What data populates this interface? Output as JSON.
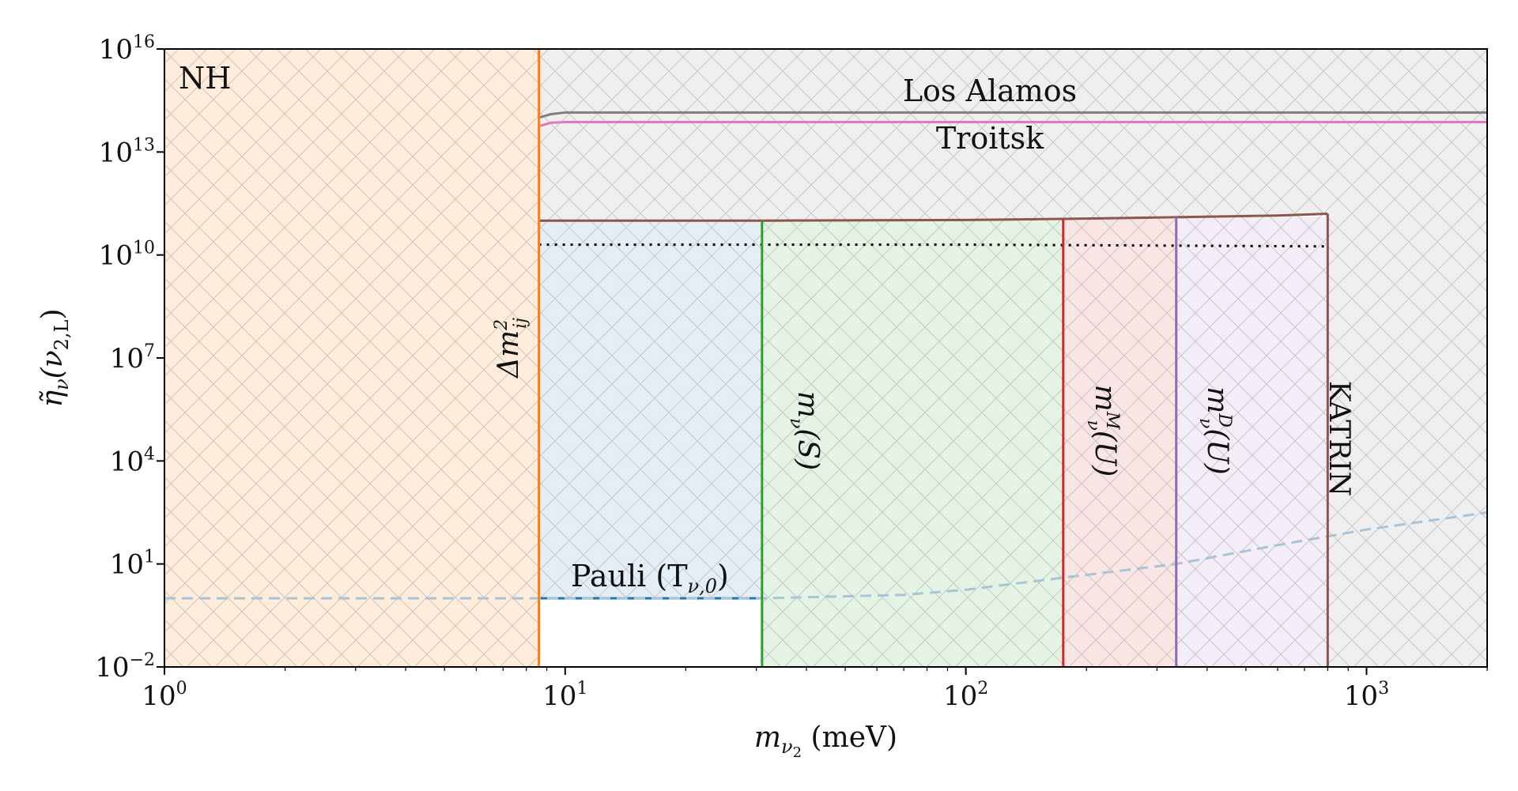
{
  "chart_data": {
    "type": "line",
    "title": "",
    "xlabel": "m_{ν2} (meV)",
    "ylabel": "η̃_ν(ν_{2,L})",
    "x_scale": "log",
    "y_scale": "log",
    "xlim": [
      1,
      2000
    ],
    "ylim_exp": [
      -2,
      16
    ],
    "x_ticks": [
      {
        "value": 1,
        "base": "10",
        "exp": "0"
      },
      {
        "value": 10,
        "base": "10",
        "exp": "1"
      },
      {
        "value": 100,
        "base": "10",
        "exp": "2"
      },
      {
        "value": 1000,
        "base": "10",
        "exp": "3"
      }
    ],
    "y_ticks": [
      {
        "exp_value": -2,
        "base": "10",
        "exp": "−2"
      },
      {
        "exp_value": 1,
        "base": "10",
        "exp": "1"
      },
      {
        "exp_value": 4,
        "base": "10",
        "exp": "4"
      },
      {
        "exp_value": 7,
        "base": "10",
        "exp": "7"
      },
      {
        "exp_value": 10,
        "base": "10",
        "exp": "10"
      },
      {
        "exp_value": 13,
        "base": "10",
        "exp": "13"
      },
      {
        "exp_value": 16,
        "base": "10",
        "exp": "16"
      }
    ],
    "colors": {
      "nh_region": "#ff7f0e",
      "pauli": "#1f77b4",
      "cosmo_s": "#2ca02c",
      "majorana": "#d62728",
      "dirac": "#9467bd",
      "katrin": "#8c564b",
      "los_alamos": "#7f7f7f",
      "troitsk": "#e377c2",
      "dotted": "#000000",
      "dashed": "#a8c4d8",
      "background_gray": "#d9d9d9"
    },
    "regions": [
      {
        "name": "NH",
        "x_from": 1,
        "x_to": 8.6,
        "color": "#ff7f0e"
      },
      {
        "name": "Pauli",
        "x_from": 8.6,
        "x_to": 31,
        "y_exp_from": 0,
        "y_exp_to": 11,
        "color": "#1f77b4"
      },
      {
        "name": "m_ν(S)",
        "x_from": 31,
        "x_to": 175,
        "color": "#2ca02c"
      },
      {
        "name": "m_ν^M(U)",
        "x_from": 175,
        "x_to": 335,
        "color": "#d62728"
      },
      {
        "name": "m_ν^D(U)",
        "x_from": 335,
        "x_to": 800,
        "color": "#9467bd"
      },
      {
        "name": "KATRIN",
        "x_from": 800,
        "x_to": 2000,
        "color": "#8c564b"
      }
    ],
    "vertical_lines": [
      {
        "name": "Δm²_ij",
        "x": 8.6,
        "color": "#ff7f0e"
      },
      {
        "name": "m_ν(S)",
        "x": 31,
        "y_exp_top": 11.0,
        "color": "#2ca02c"
      },
      {
        "name": "m_ν^M(U)",
        "x": 175,
        "y_exp_top": 11.05,
        "color": "#d62728"
      },
      {
        "name": "m_ν^D(U)",
        "x": 335,
        "y_exp_top": 11.1,
        "color": "#9467bd"
      },
      {
        "name": "KATRIN",
        "x": 800,
        "y_exp_top": 11.2,
        "color": "#8c564b"
      }
    ],
    "series": [
      {
        "name": "Los Alamos",
        "style": "solid",
        "color": "#7f7f7f",
        "x": [
          8.6,
          9.2,
          10,
          100,
          1000,
          2000
        ],
        "y_exp": [
          14.0,
          14.1,
          14.15,
          14.15,
          14.15,
          14.15
        ]
      },
      {
        "name": "Troitsk",
        "style": "solid",
        "color": "#e377c2",
        "x": [
          8.6,
          9.2,
          10,
          100,
          1000,
          2000
        ],
        "y_exp": [
          13.75,
          13.85,
          13.87,
          13.87,
          13.87,
          13.87
        ]
      },
      {
        "name": "KATRIN top",
        "style": "solid",
        "color": "#8c564b",
        "x": [
          8.6,
          31,
          100,
          175,
          335,
          600,
          800
        ],
        "y_exp": [
          11.0,
          11.0,
          11.02,
          11.05,
          11.1,
          11.15,
          11.2
        ]
      },
      {
        "name": "dotted",
        "style": "dotted",
        "color": "#000000",
        "x": [
          8.6,
          100,
          800
        ],
        "y_exp": [
          10.3,
          10.3,
          10.25
        ]
      },
      {
        "name": "Pauli bound",
        "style": "solid",
        "color": "#1f77b4",
        "x": [
          8.6,
          31
        ],
        "y_exp": [
          0,
          0
        ]
      },
      {
        "name": "dashed",
        "style": "dashed",
        "color": "#a8c4d8",
        "x": [
          1,
          10,
          31,
          70,
          100,
          175,
          335,
          600,
          1000,
          2000
        ],
        "y_exp": [
          0,
          0,
          0,
          0.1,
          0.25,
          0.6,
          1.0,
          1.55,
          2.0,
          2.5
        ]
      }
    ],
    "annotations": [
      {
        "key": "nh",
        "text": "NH"
      },
      {
        "key": "los_alamos",
        "text": "Los Alamos"
      },
      {
        "key": "troitsk",
        "text": "Troitsk"
      },
      {
        "key": "pauli",
        "text": "Pauli (T",
        "sub": "ν,0",
        "close": ")"
      },
      {
        "key": "dm",
        "text": "Δm",
        "sup": "2",
        "sub": "ij"
      },
      {
        "key": "ms",
        "text": "m",
        "sub": "ν",
        "rest": "(S)"
      },
      {
        "key": "mm",
        "text": "m",
        "sup": "M",
        "sub": "ν",
        "rest": "(U)"
      },
      {
        "key": "md",
        "text": "m",
        "sup": "D",
        "sub": "ν",
        "rest": "(U)"
      },
      {
        "key": "katrin",
        "text": "KATRIN"
      }
    ],
    "axis_labels": {
      "x_main": "m",
      "x_sub": "ν",
      "x_subsub": "2",
      "x_unit": " (meV)",
      "y_main": "η̃",
      "y_sub": "ν",
      "y_arg": "(ν",
      "y_arg_sub": "2,L",
      "y_close": ")"
    }
  }
}
